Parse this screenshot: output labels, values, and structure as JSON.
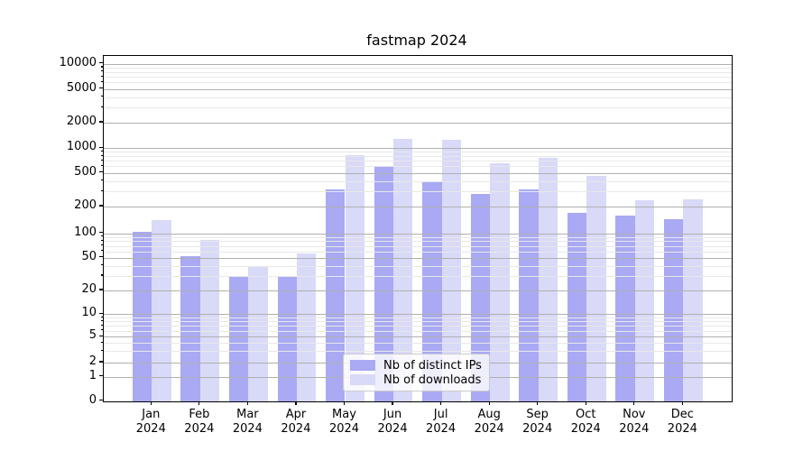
{
  "chart_data": {
    "type": "bar",
    "title": "fastmap 2024",
    "xlabel": "",
    "ylabel": "",
    "y_scale": "symlog",
    "grid": true,
    "legend_position": "lower center",
    "categories": [
      "Jan",
      "Feb",
      "Mar",
      "Apr",
      "May",
      "Jun",
      "Jul",
      "Aug",
      "Sep",
      "Oct",
      "Nov",
      "Dec"
    ],
    "x_tick_labels": [
      [
        "Jan",
        "2024"
      ],
      [
        "Feb",
        "2024"
      ],
      [
        "Mar",
        "2024"
      ],
      [
        "Apr",
        "2024"
      ],
      [
        "May",
        "2024"
      ],
      [
        "Jun",
        "2024"
      ],
      [
        "Jul",
        "2024"
      ],
      [
        "Aug",
        "2024"
      ],
      [
        "Sep",
        "2024"
      ],
      [
        "Oct",
        "2024"
      ],
      [
        "Nov",
        "2024"
      ],
      [
        "Dec",
        "2024"
      ]
    ],
    "series": [
      {
        "name": "Nb of distinct IPs",
        "color": "#a9a9f4",
        "values": [
          103,
          52,
          29,
          30,
          315,
          600,
          395,
          280,
          320,
          170,
          160,
          145
        ]
      },
      {
        "name": "Nb of downloads",
        "color": "#d9d9f8",
        "values": [
          140,
          83,
          39,
          56,
          830,
          1300,
          1250,
          660,
          770,
          460,
          235,
          245
        ]
      }
    ],
    "y_ticks": [
      {
        "value": 0,
        "label": "0"
      },
      {
        "value": 1,
        "label": "1"
      },
      {
        "value": 2,
        "label": "2"
      },
      {
        "value": 5,
        "label": "5"
      },
      {
        "value": 10,
        "label": "10"
      },
      {
        "value": 20,
        "label": "20"
      },
      {
        "value": 50,
        "label": "50"
      },
      {
        "value": 100,
        "label": "100"
      },
      {
        "value": 200,
        "label": "200"
      },
      {
        "value": 500,
        "label": "500"
      },
      {
        "value": 1000,
        "label": "1000"
      },
      {
        "value": 2000,
        "label": "2000"
      },
      {
        "value": 5000,
        "label": "5000"
      },
      {
        "value": 10000,
        "label": "10000"
      }
    ],
    "minor_grid_values": [
      3,
      4,
      6,
      7,
      8,
      9,
      30,
      40,
      60,
      70,
      80,
      90,
      300,
      400,
      600,
      700,
      800,
      900,
      3000,
      4000,
      6000,
      7000,
      8000,
      9000
    ],
    "colors": {
      "grid_major": "#b0b0b0",
      "grid_minor": "#e8e8e8",
      "axis": "#000000"
    }
  }
}
